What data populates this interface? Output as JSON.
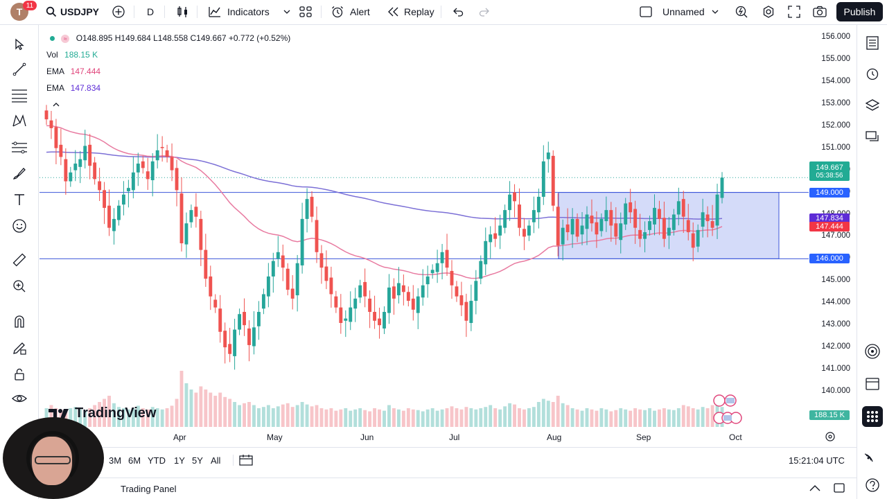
{
  "header": {
    "notification_count": "11",
    "avatar_letter": "T",
    "symbol": "USDJPY",
    "interval": "D",
    "indicators_label": "Indicators",
    "alert_label": "Alert",
    "replay_label": "Replay",
    "layout_name": "Unnamed",
    "publish_label": "Publish"
  },
  "legend": {
    "ohlc": "O148.895  H149.684  L148.558  C149.667  +0.772 (+0.52%)",
    "vol_label": "Vol",
    "vol_value": "188.15 K",
    "ema1_label": "EMA",
    "ema1_value": "147.444",
    "ema2_label": "EMA",
    "ema2_value": "147.834"
  },
  "price_axis": {
    "labels": [
      "156.000",
      "155.000",
      "154.000",
      "153.000",
      "152.000",
      "151.000",
      "150.000",
      "149.000",
      "148.000",
      "147.000",
      "146.000",
      "145.000",
      "144.000",
      "143.000",
      "142.000",
      "141.000",
      "140.000"
    ],
    "last_price": "149.667",
    "countdown": "05:38:56",
    "level_upper": "149.000",
    "ema2_tag": "147.834",
    "ema1_tag": "147.444",
    "level_lower": "146.000",
    "volume_tag": "188.15 K"
  },
  "time_axis": {
    "labels": [
      "Apr",
      "May",
      "Jun",
      "Jul",
      "Aug",
      "Sep",
      "Oct"
    ]
  },
  "bottom_bar": {
    "ranges": [
      "3M",
      "6M",
      "YTD",
      "1Y",
      "5Y",
      "All"
    ],
    "clock": "15:21:04 UTC",
    "panel_label": "Trading Panel"
  },
  "branding": {
    "logo_text": "TradingView"
  },
  "colors": {
    "up": "#26a69a",
    "down": "#ef5350",
    "ema_fast": "#e87aa0",
    "ema_slow": "#7b6fd6",
    "range_box": "#c5cff7",
    "range_border": "#3b55d9",
    "last_price_tag": "#22ab94",
    "level_tag": "#2962ff",
    "ema1_tag": "#f23645",
    "ema2_tag": "#5d2cd6"
  },
  "chart_data": {
    "type": "candlestick",
    "symbol": "USDJPY",
    "interval": "D",
    "ylim": [
      140,
      156
    ],
    "horizontal_levels": [
      149.0,
      146.0
    ],
    "range_box": {
      "top": 149.0,
      "bottom": 146.0,
      "from": "Aug",
      "to": "Oct"
    },
    "x_labels": [
      "Apr",
      "May",
      "Jun",
      "Jul",
      "Aug",
      "Sep",
      "Oct"
    ],
    "ohlc_last": {
      "open": 148.895,
      "high": 149.684,
      "low": 148.558,
      "close": 149.667,
      "change": 0.772,
      "change_pct": 0.52
    },
    "closes": [
      152.3,
      151.9,
      151.0,
      150.6,
      149.5,
      149.9,
      150.3,
      150.5,
      151.1,
      150.2,
      149.6,
      149.1,
      148.3,
      147.4,
      147.8,
      148.4,
      148.9,
      149.2,
      149.9,
      150.3,
      150.1,
      149.6,
      150.4,
      150.9,
      151.0,
      150.6,
      150.0,
      149.1,
      146.7,
      147.6,
      148.2,
      147.9,
      146.4,
      145.1,
      144.3,
      143.8,
      142.7,
      142.0,
      141.7,
      142.8,
      143.5,
      143.0,
      142.1,
      142.9,
      143.6,
      144.4,
      145.2,
      145.9,
      146.3,
      145.6,
      144.6,
      144.2,
      145.8,
      147.8,
      148.7,
      147.9,
      146.3,
      145.6,
      145.0,
      144.4,
      143.8,
      143.1,
      143.3,
      143.8,
      144.2,
      144.8,
      144.3,
      143.6,
      143.2,
      143.0,
      143.6,
      144.7,
      144.2,
      144.9,
      144.5,
      144.1,
      143.7,
      144.3,
      144.8,
      145.2,
      145.5,
      145.8,
      146.3,
      145.6,
      144.8,
      144.3,
      143.9,
      143.2,
      144.1,
      145.0,
      145.9,
      146.8,
      147.1,
      146.9,
      147.5,
      148.2,
      148.9,
      148.6,
      147.4,
      147.0,
      147.5,
      148.2,
      148.8,
      150.4,
      150.8,
      148.4,
      146.6,
      147.4,
      147.2,
      147.8,
      147.0,
      147.5,
      148.0,
      147.6,
      147.1,
      147.8,
      148.2,
      147.5,
      147.0,
      147.6,
      148.5,
      148.1,
      147.4,
      146.9,
      147.2,
      147.7,
      148.3,
      147.8,
      146.9,
      147.4,
      148.0,
      148.6,
      147.9,
      147.2,
      146.5,
      147.3,
      148.1,
      147.7,
      147.4,
      148.9,
      149.667
    ],
    "volumes": [
      0.3,
      0.35,
      0.3,
      0.28,
      0.25,
      0.3,
      0.32,
      0.28,
      0.26,
      0.3,
      0.35,
      0.4,
      0.45,
      0.5,
      0.38,
      0.32,
      0.3,
      0.28,
      0.3,
      0.34,
      0.3,
      0.28,
      0.32,
      0.3,
      0.28,
      0.3,
      0.34,
      0.45,
      0.9,
      0.7,
      0.6,
      0.55,
      0.65,
      0.6,
      0.55,
      0.5,
      0.55,
      0.48,
      0.45,
      0.4,
      0.35,
      0.38,
      0.4,
      0.35,
      0.3,
      0.32,
      0.35,
      0.3,
      0.33,
      0.36,
      0.38,
      0.32,
      0.35,
      0.4,
      0.36,
      0.33,
      0.35,
      0.3,
      0.28,
      0.3,
      0.26,
      0.28,
      0.3,
      0.26,
      0.28,
      0.3,
      0.27,
      0.25,
      0.3,
      0.28,
      0.26,
      0.35,
      0.3,
      0.28,
      0.26,
      0.3,
      0.28,
      0.27,
      0.25,
      0.28,
      0.3,
      0.26,
      0.28,
      0.3,
      0.33,
      0.3,
      0.28,
      0.32,
      0.3,
      0.28,
      0.3,
      0.32,
      0.35,
      0.3,
      0.28,
      0.33,
      0.38,
      0.36,
      0.3,
      0.28,
      0.3,
      0.32,
      0.4,
      0.45,
      0.42,
      0.4,
      0.5,
      0.38,
      0.35,
      0.3,
      0.28,
      0.26,
      0.3,
      0.28,
      0.26,
      0.3,
      0.28,
      0.25,
      0.27,
      0.3,
      0.28,
      0.26,
      0.3,
      0.28,
      0.27,
      0.3,
      0.26,
      0.28,
      0.3,
      0.28,
      0.27,
      0.3,
      0.35,
      0.33,
      0.3,
      0.28,
      0.32,
      0.3,
      0.35,
      0.5,
      0.32
    ]
  }
}
